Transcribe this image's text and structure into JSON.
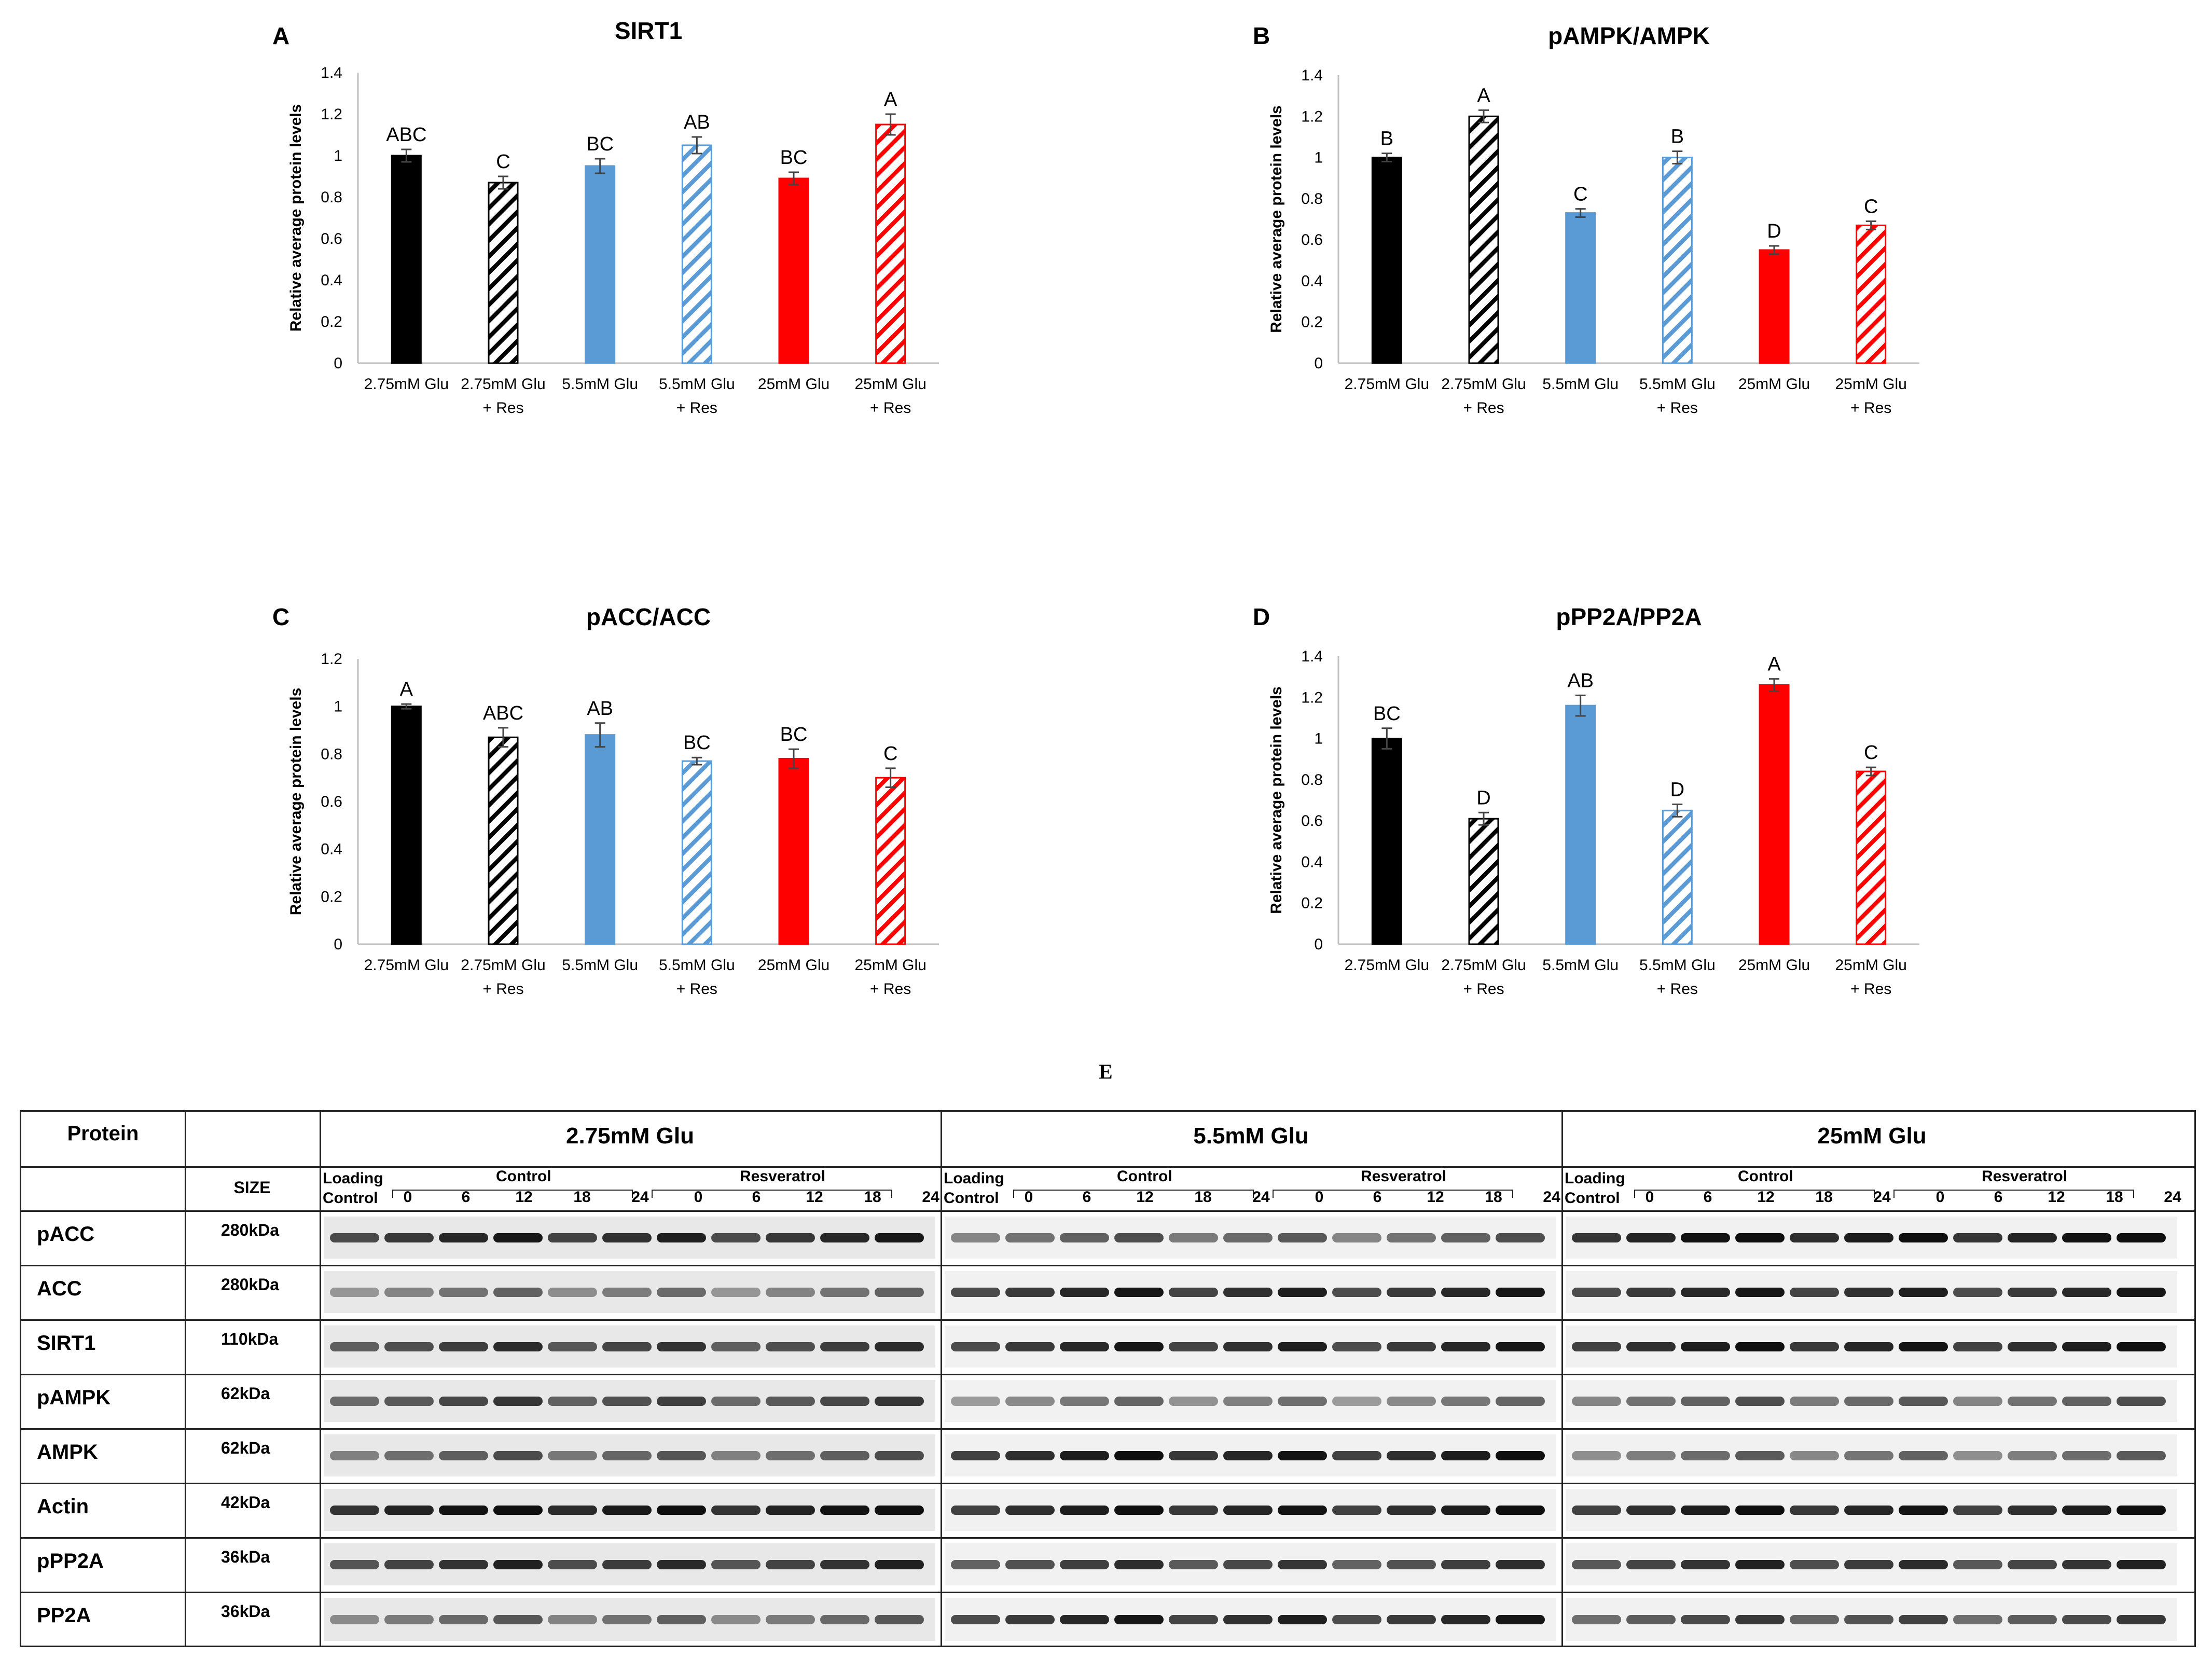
{
  "chart_data": [
    {
      "panel": "A",
      "type": "bar",
      "title": "SIRT1",
      "ylabel": "Relative average protein levels",
      "ylim": [
        0,
        1.4
      ],
      "yticks": [
        "0",
        "0.2",
        "0.4",
        "0.6",
        "0.8",
        "1",
        "1.2",
        "1.4"
      ],
      "categories": [
        "2.75mM Glu",
        "2.75mM Glu\n+ Res",
        "5.5mM Glu",
        "5.5mM Glu\n+ Res",
        "25mM Glu",
        "25mM Glu\n+ Res"
      ],
      "values": [
        1.0,
        0.87,
        0.95,
        1.05,
        0.89,
        1.15
      ],
      "errors": [
        0.03,
        0.03,
        0.035,
        0.04,
        0.03,
        0.05
      ],
      "letters": [
        "ABC",
        "C",
        "BC",
        "AB",
        "BC",
        "A"
      ]
    },
    {
      "panel": "B",
      "type": "bar",
      "title": "pAMPK/AMPK",
      "ylabel": "Relative average protein levels",
      "ylim": [
        0,
        1.4
      ],
      "yticks": [
        "0",
        "0.2",
        "0.4",
        "0.6",
        "0.8",
        "1",
        "1.2",
        "1.4"
      ],
      "categories": [
        "2.75mM Glu",
        "2.75mM Glu\n+ Res",
        "5.5mM Glu",
        "5.5mM Glu\n+ Res",
        "25mM Glu",
        "25mM Glu\n+ Res"
      ],
      "values": [
        1.0,
        1.2,
        0.73,
        1.0,
        0.55,
        0.67
      ],
      "errors": [
        0.02,
        0.03,
        0.02,
        0.03,
        0.02,
        0.02
      ],
      "letters": [
        "B",
        "A",
        "C",
        "B",
        "D",
        "C"
      ]
    },
    {
      "panel": "C",
      "type": "bar",
      "title": "pACC/ACC",
      "ylabel": "Relative average protein levels",
      "ylim": [
        0,
        1.2
      ],
      "yticks": [
        "0",
        "0.2",
        "0.4",
        "0.6",
        "0.8",
        "1",
        "1.2"
      ],
      "categories": [
        "2.75mM Glu",
        "2.75mM Glu\n+ Res",
        "5.5mM Glu",
        "5.5mM Glu\n+ Res",
        "25mM Glu",
        "25mM Glu\n+ Res"
      ],
      "values": [
        1.0,
        0.87,
        0.88,
        0.77,
        0.78,
        0.7
      ],
      "errors": [
        0.01,
        0.04,
        0.05,
        0.015,
        0.04,
        0.04
      ],
      "letters": [
        "A",
        "ABC",
        "AB",
        "BC",
        "BC",
        "C"
      ]
    },
    {
      "panel": "D",
      "type": "bar",
      "title": "pPP2A/PP2A",
      "ylabel": "Relative average protein levels",
      "ylim": [
        0,
        1.4
      ],
      "yticks": [
        "0",
        "0.2",
        "0.4",
        "0.6",
        "0.8",
        "1",
        "1.2",
        "1.4"
      ],
      "categories": [
        "2.75mM Glu",
        "2.75mM Glu\n+ Res",
        "5.5mM Glu",
        "5.5mM Glu\n+ Res",
        "25mM Glu",
        "25mM Glu\n+ Res"
      ],
      "values": [
        1.0,
        0.61,
        1.16,
        0.65,
        1.26,
        0.84
      ],
      "errors": [
        0.05,
        0.03,
        0.05,
        0.03,
        0.03,
        0.02
      ],
      "letters": [
        "BC",
        "D",
        "AB",
        "D",
        "A",
        "C"
      ]
    }
  ],
  "colors": {
    "black": "#000000",
    "blue": "#5b9bd5",
    "red": "#ff0000",
    "axis": "#bfbfbf"
  },
  "blot": {
    "panel_label": "E",
    "header_protein": "Protein",
    "header_size": "SIZE",
    "conditions": [
      {
        "name": "2.75mM Glu"
      },
      {
        "name": "5.5mM Glu"
      },
      {
        "name": "25mM Glu"
      }
    ],
    "loading_control": [
      "Loading",
      "Control"
    ],
    "group_control": "Control",
    "group_res": "Resveratrol",
    "lanes": [
      "0",
      "6",
      "12",
      "18",
      "24",
      "0",
      "6",
      "12",
      "18",
      "24"
    ],
    "rows": [
      {
        "protein": "pACC",
        "size": "280kDa",
        "intensity": [
          0.85,
          0.6,
          0.95
        ]
      },
      {
        "protein": "ACC",
        "size": "280kDa",
        "intensity": [
          0.5,
          0.85,
          0.85
        ]
      },
      {
        "protein": "SIRT1",
        "size": "110kDa",
        "intensity": [
          0.75,
          0.85,
          0.9
        ]
      },
      {
        "protein": "pAMPK",
        "size": "62kDa",
        "intensity": [
          0.7,
          0.5,
          0.6
        ]
      },
      {
        "protein": "AMPK",
        "size": "62kDa",
        "intensity": [
          0.6,
          0.9,
          0.55
        ]
      },
      {
        "protein": "Actin",
        "size": "42kDa",
        "intensity": [
          0.95,
          0.9,
          0.9
        ]
      },
      {
        "protein": "pPP2A",
        "size": "36kDa",
        "intensity": [
          0.8,
          0.75,
          0.8
        ]
      },
      {
        "protein": "PP2A",
        "size": "36kDa",
        "intensity": [
          0.55,
          0.85,
          0.7
        ]
      }
    ]
  }
}
